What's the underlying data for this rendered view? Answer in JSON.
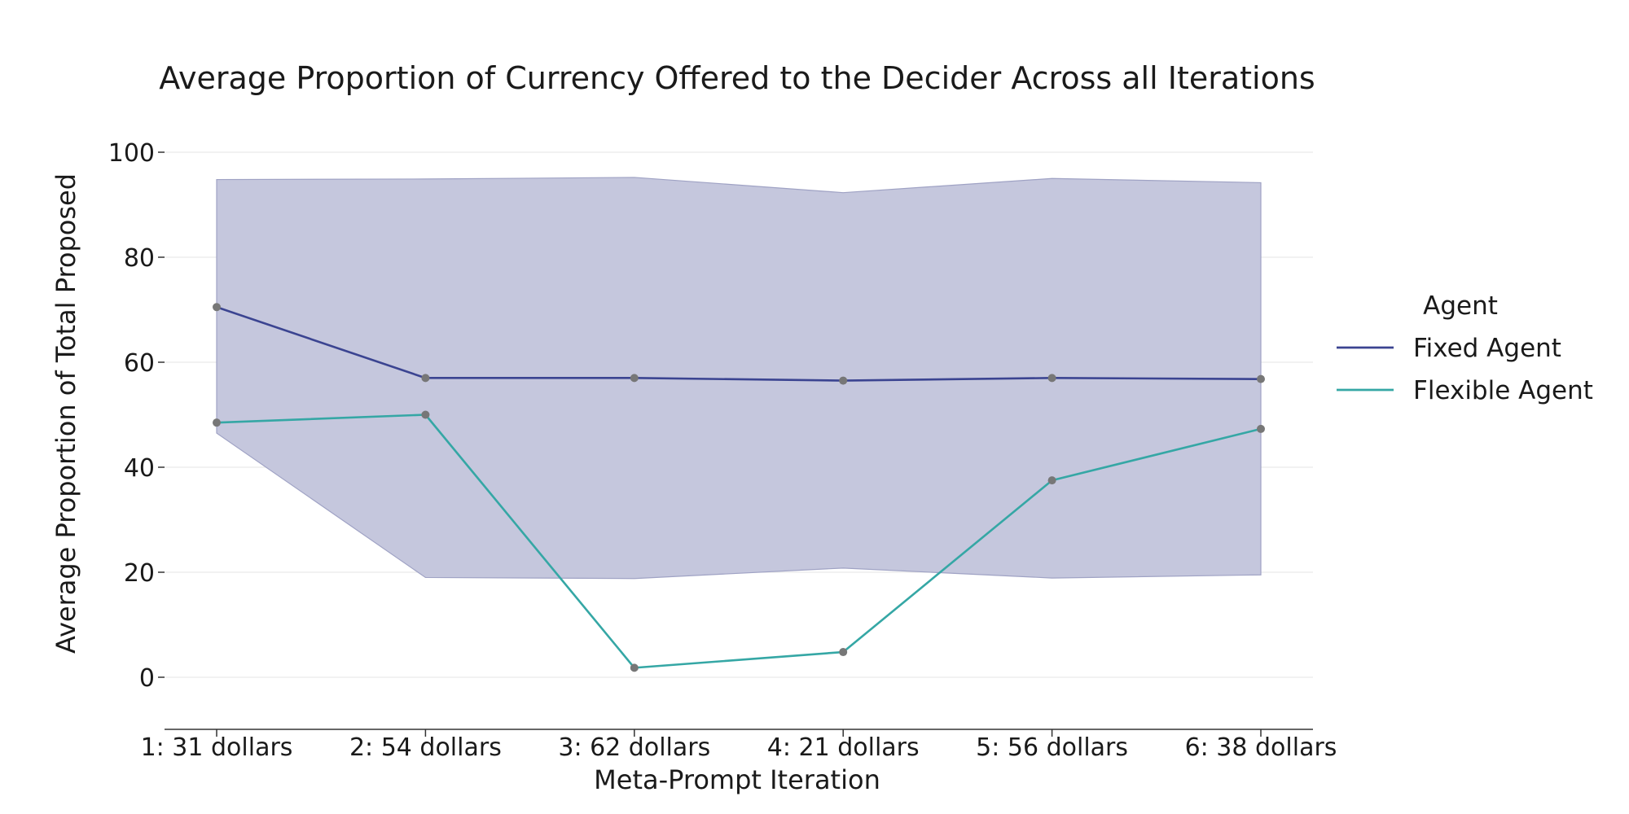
{
  "chart_data": {
    "type": "line",
    "title": "Average Proportion of Currency Offered to the Decider Across all Iterations",
    "xlabel": "Meta-Prompt Iteration",
    "ylabel": "Average Proportion of Total Proposed",
    "categories": [
      "1: 31 dollars",
      "2: 54 dollars",
      "3: 62 dollars",
      "4: 21 dollars",
      "5: 56 dollars",
      "6: 38 dollars"
    ],
    "ylim": [
      -10,
      100
    ],
    "yticks": [
      0,
      20,
      40,
      60,
      80,
      100
    ],
    "grid": true,
    "legend": {
      "title": "Agent",
      "placement": "right"
    },
    "series": [
      {
        "name": "Fixed Agent",
        "values": [
          70.5,
          57.0,
          57.0,
          56.5,
          57.0,
          56.8
        ],
        "color": "#3b4491",
        "band": {
          "lower": [
            46.5,
            19.0,
            18.8,
            20.8,
            18.9,
            19.5
          ],
          "upper": [
            94.8,
            94.9,
            95.2,
            92.3,
            95.0,
            94.2
          ],
          "color": "#c4c6dc"
        }
      },
      {
        "name": "Flexible Agent",
        "values": [
          48.5,
          50.0,
          1.8,
          4.8,
          37.5,
          47.3
        ],
        "color": "#35a7a5"
      }
    ],
    "marker_color": "#777777",
    "grid_color": "#e9e9e9",
    "axis_color": "#333333"
  }
}
